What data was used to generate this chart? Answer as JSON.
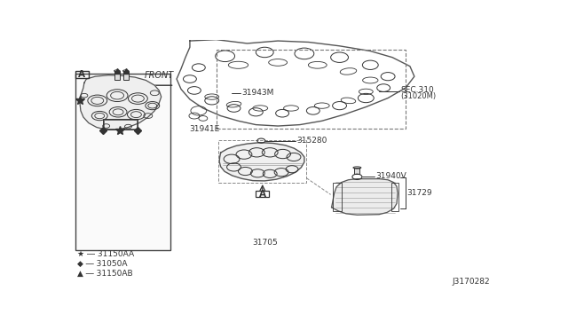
{
  "background_color": "#ffffff",
  "fig_width": 6.4,
  "fig_height": 3.72,
  "dpi": 100,
  "label_FRONT": "FRONT",
  "label_31943M": "31943M",
  "label_31941E": "31941E",
  "label_SEC310": "SEC.310",
  "label_31020M": "(31020M)",
  "label_315280": "315280",
  "label_31940V": "31940V",
  "label_31729": "31729",
  "label_31705": "31705",
  "label_leg1": "★ ― 31150AA",
  "label_leg2": "◆ ― 31050A",
  "label_leg3": "▲ ― 31150AB",
  "label_diagnum": "J3170282",
  "label_A": "A"
}
